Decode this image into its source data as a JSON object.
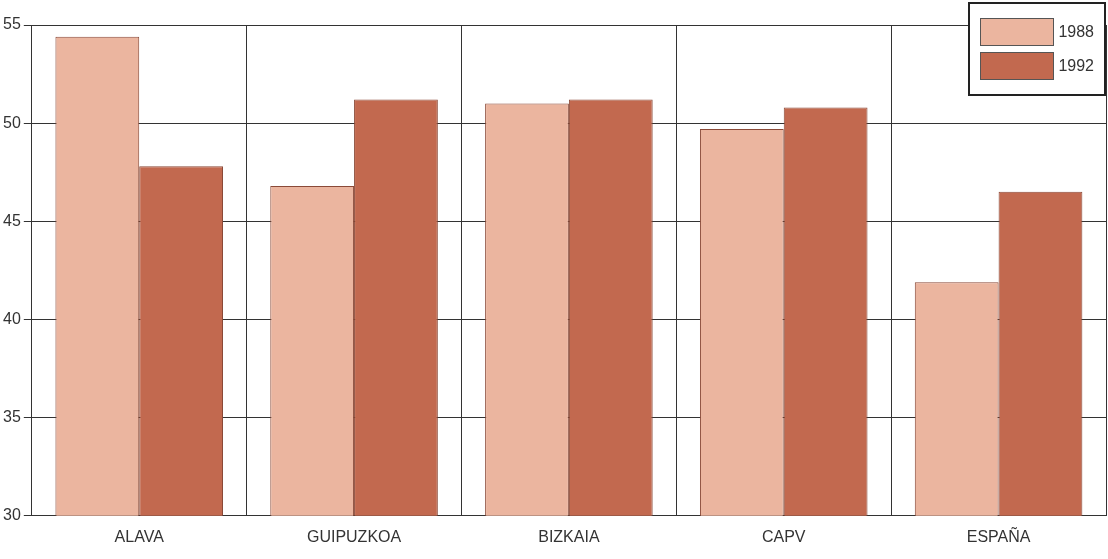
{
  "chart_data": {
    "type": "bar",
    "categories": [
      "ALAVA",
      "GUIPUZKOA",
      "BIZKAIA",
      "CAPV",
      "ESPAÑA"
    ],
    "series": [
      {
        "name": "1988",
        "color": "#ebb59f",
        "values": [
          54.4,
          46.8,
          51.0,
          49.7,
          41.9
        ]
      },
      {
        "name": "1992",
        "color": "#c2694f",
        "values": [
          47.8,
          51.2,
          51.2,
          50.8,
          46.5
        ]
      }
    ],
    "ylim": [
      30,
      55
    ],
    "yticks": [
      30,
      35,
      40,
      45,
      50,
      55
    ],
    "grid": true,
    "legend": "top right"
  }
}
